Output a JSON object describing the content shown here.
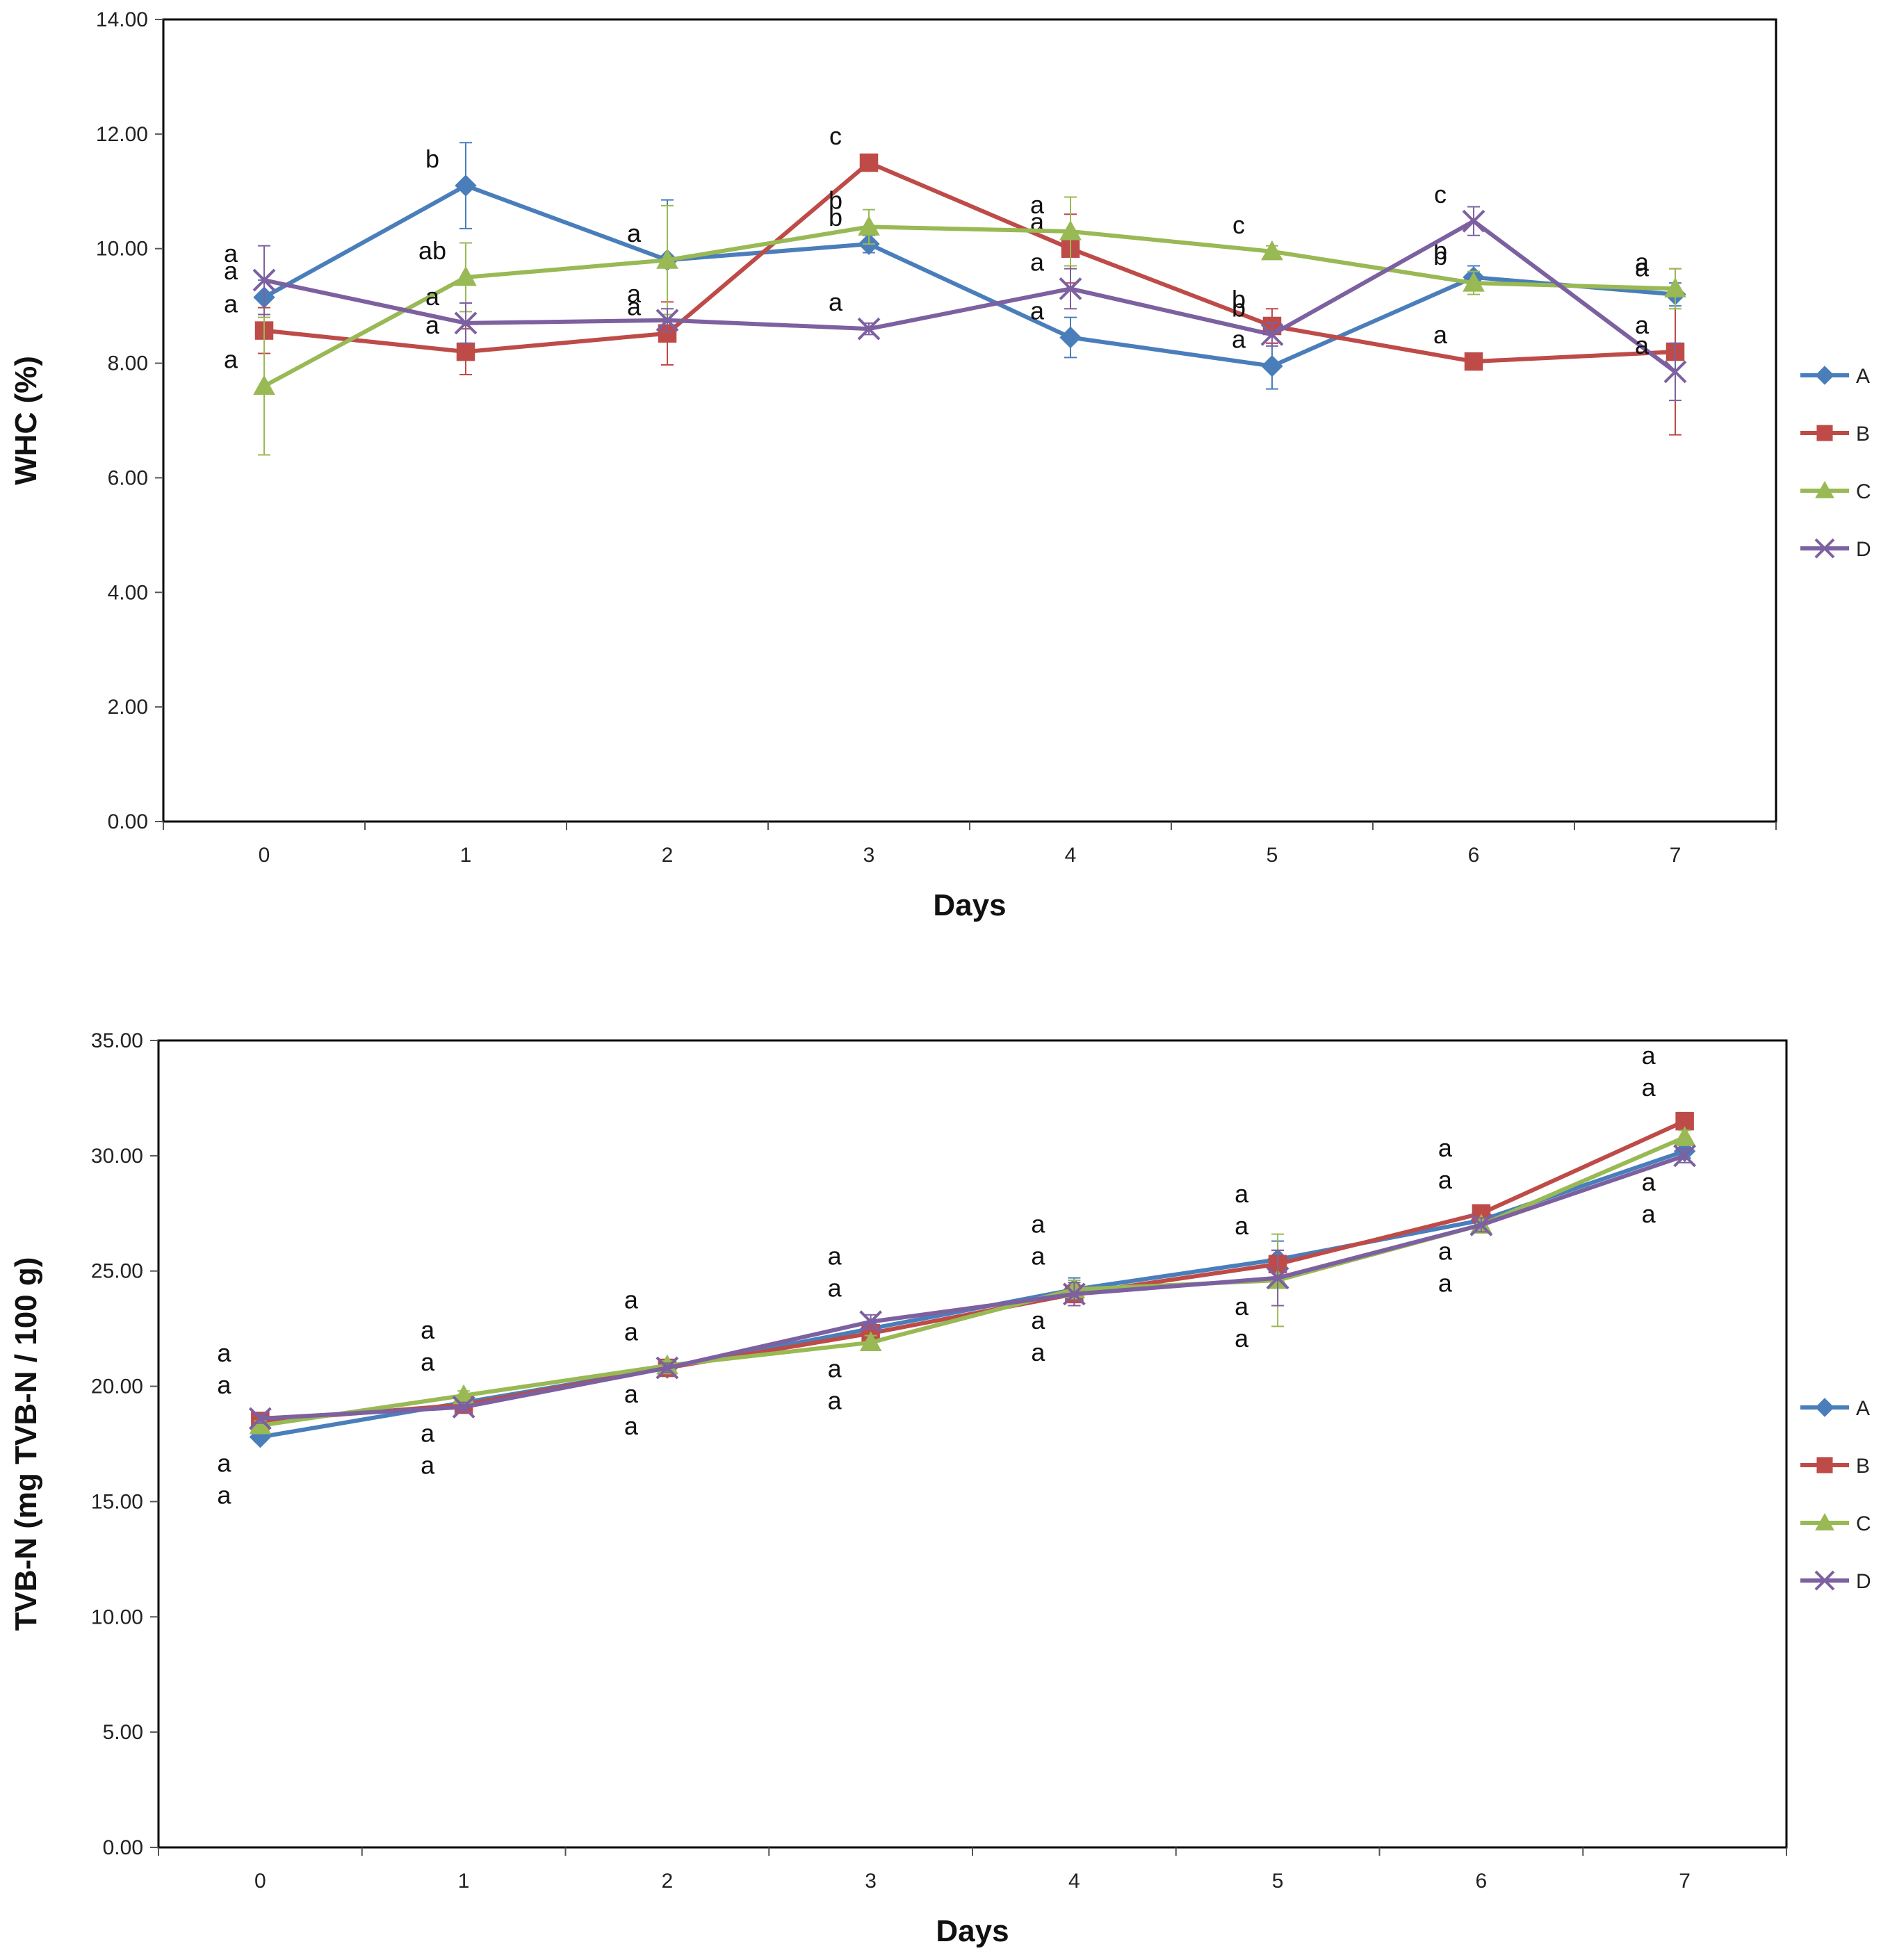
{
  "chart_data": [
    {
      "type": "line",
      "xlabel": "Days",
      "ylabel": "WHC (%)",
      "x": [
        0,
        1,
        2,
        3,
        4,
        5,
        6,
        7
      ],
      "ylim": [
        0,
        14
      ],
      "yticks": [
        "0.00",
        "2.00",
        "4.00",
        "6.00",
        "8.00",
        "10.00",
        "12.00",
        "14.00"
      ],
      "grid": false,
      "legend_position": "right",
      "series": [
        {
          "name": "A",
          "color": "#4a7ebb",
          "marker": "diamond",
          "values": [
            9.15,
            11.1,
            9.8,
            10.08,
            8.45,
            7.95,
            9.5,
            9.2
          ],
          "errors": [
            0.3,
            0.75,
            1.05,
            0.15,
            0.35,
            0.4,
            0.2,
            0.2
          ],
          "letters": [
            "a",
            "b",
            "a",
            "b",
            "a",
            "a",
            "b",
            "a"
          ]
        },
        {
          "name": "B",
          "color": "#be4b48",
          "marker": "square",
          "values": [
            8.57,
            8.2,
            8.52,
            11.5,
            10.0,
            8.65,
            8.03,
            8.2
          ],
          "errors": [
            0.4,
            0.4,
            0.55,
            0.1,
            0.6,
            0.3,
            0.1,
            1.45
          ],
          "letters": [
            "a",
            "a",
            "a",
            "c",
            "a",
            "b",
            "a",
            "a"
          ]
        },
        {
          "name": "C",
          "color": "#98b954",
          "marker": "triangle",
          "values": [
            7.6,
            9.5,
            9.8,
            10.38,
            10.3,
            9.95,
            9.4,
            9.3
          ],
          "errors": [
            1.2,
            0.6,
            0.95,
            0.3,
            0.6,
            0.1,
            0.2,
            0.35
          ],
          "letters": [
            "a",
            "ab",
            "a",
            "b",
            "a",
            "c",
            "b",
            "a"
          ]
        },
        {
          "name": "D",
          "color": "#7d60a0",
          "marker": "x",
          "values": [
            9.45,
            8.7,
            8.75,
            8.6,
            9.3,
            8.5,
            10.48,
            7.85
          ],
          "errors": [
            0.6,
            0.35,
            0.2,
            0.1,
            0.35,
            0.2,
            0.25,
            0.5
          ],
          "letters": [
            "a",
            "a",
            "a",
            "a",
            "a",
            "b",
            "c",
            "a"
          ]
        }
      ]
    },
    {
      "type": "line",
      "xlabel": "Days",
      "ylabel": "TVB-N (mg TVB-N / 100 g)",
      "x": [
        0,
        1,
        2,
        3,
        4,
        5,
        6,
        7
      ],
      "ylim": [
        0,
        35
      ],
      "yticks": [
        "0.00",
        "5.00",
        "10.00",
        "15.00",
        "20.00",
        "25.00",
        "30.00",
        "35.00"
      ],
      "grid": false,
      "legend_position": "right",
      "series": [
        {
          "name": "A",
          "color": "#4a7ebb",
          "marker": "diamond",
          "values": [
            17.8,
            19.3,
            20.8,
            22.5,
            24.2,
            25.5,
            27.2,
            30.2
          ],
          "errors": [
            0.2,
            0.2,
            0.2,
            0.3,
            0.5,
            0.8,
            0.4,
            0.3
          ]
        },
        {
          "name": "B",
          "color": "#be4b48",
          "marker": "square",
          "values": [
            18.5,
            19.2,
            20.8,
            22.3,
            24.0,
            25.3,
            27.5,
            31.5
          ],
          "errors": [
            0.2,
            0.2,
            0.2,
            0.3,
            0.5,
            0.6,
            0.3,
            0.3
          ]
        },
        {
          "name": "C",
          "color": "#98b954",
          "marker": "triangle",
          "values": [
            18.3,
            19.6,
            20.9,
            21.9,
            24.2,
            24.6,
            27.0,
            30.8
          ],
          "errors": [
            0.2,
            0.2,
            0.2,
            0.3,
            0.4,
            2.0,
            0.3,
            0.3
          ]
        },
        {
          "name": "D",
          "color": "#7d60a0",
          "marker": "x",
          "values": [
            18.6,
            19.1,
            20.8,
            22.8,
            24.0,
            24.7,
            27.0,
            30.0
          ],
          "errors": [
            0.2,
            0.2,
            0.2,
            0.3,
            0.5,
            1.2,
            0.3,
            0.3
          ]
        }
      ],
      "letter_stacks": [
        [
          "a",
          "a",
          "a",
          "a"
        ],
        [
          "a",
          "a",
          "a",
          "a"
        ],
        [
          "a",
          "a",
          "a",
          "a"
        ],
        [
          "a",
          "a",
          "a",
          "a"
        ],
        [
          "a",
          "a",
          "a",
          "a"
        ],
        [
          "a",
          "a",
          "a",
          "a"
        ],
        [
          "a",
          "a",
          "a",
          "a"
        ],
        [
          "a",
          "a",
          "a",
          "a"
        ]
      ]
    }
  ]
}
